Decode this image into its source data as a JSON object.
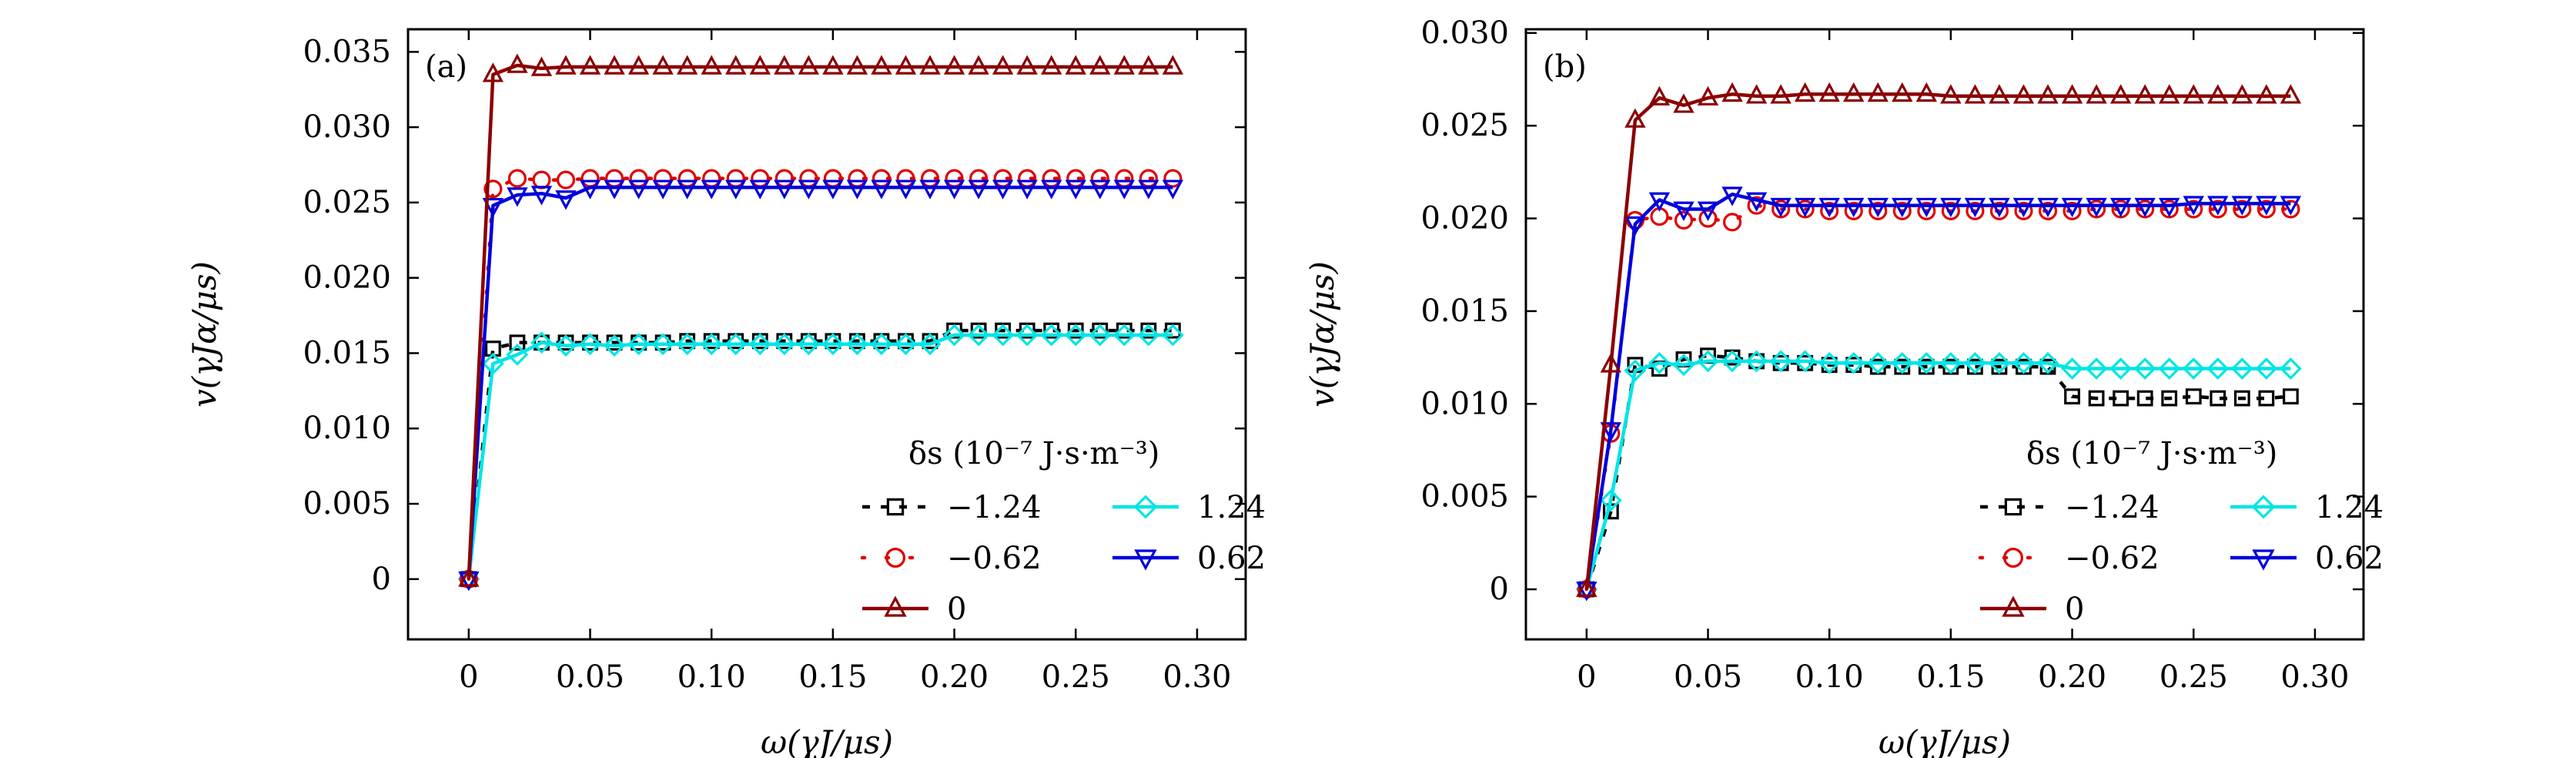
{
  "chart_data": [
    {
      "type": "line",
      "panel_label": "(a)",
      "xlabel": "ω(γJ/μs)",
      "ylabel": "v(γJα/μs)",
      "xlim": [
        -0.025,
        0.32
      ],
      "ylim": [
        -0.004,
        0.0365
      ],
      "xticks": [
        0,
        0.05,
        0.1,
        0.15,
        0.2,
        0.25,
        0.3
      ],
      "xtick_labels": [
        "0",
        "0.05",
        "0.10",
        "0.15",
        "0.20",
        "0.25",
        "0.30"
      ],
      "yticks": [
        0,
        0.005,
        0.01,
        0.015,
        0.02,
        0.025,
        0.03,
        0.035
      ],
      "ytick_labels": [
        "0",
        "0.005",
        "0.010",
        "0.015",
        "0.020",
        "0.025",
        "0.030",
        "0.035"
      ],
      "legend_title": "δs (10⁻⁷ J·s·m⁻³)",
      "legend_position": "lower-right",
      "x": [
        0,
        0.01,
        0.02,
        0.03,
        0.04,
        0.05,
        0.06,
        0.07,
        0.08,
        0.09,
        0.1,
        0.11,
        0.12,
        0.13,
        0.14,
        0.15,
        0.16,
        0.17,
        0.18,
        0.19,
        0.2,
        0.21,
        0.22,
        0.23,
        0.24,
        0.25,
        0.26,
        0.27,
        0.28,
        0.29
      ],
      "series": [
        {
          "name": "−1.24",
          "color": "#000000",
          "marker": "square",
          "line": "dashed",
          "values": [
            0,
            0.0153,
            0.0157,
            0.0157,
            0.0157,
            0.0157,
            0.0157,
            0.0157,
            0.0157,
            0.0158,
            0.0158,
            0.0158,
            0.0158,
            0.0158,
            0.0158,
            0.0158,
            0.0158,
            0.0158,
            0.0158,
            0.0158,
            0.0165,
            0.0165,
            0.0165,
            0.0165,
            0.0165,
            0.0165,
            0.0165,
            0.0165,
            0.0165,
            0.0165
          ]
        },
        {
          "name": "1.24",
          "color": "#00e5e5",
          "marker": "diamond",
          "line": "solid",
          "values": [
            0,
            0.0143,
            0.0149,
            0.0157,
            0.0155,
            0.0156,
            0.0155,
            0.0156,
            0.0156,
            0.0156,
            0.0156,
            0.0156,
            0.0156,
            0.0156,
            0.0156,
            0.0156,
            0.0156,
            0.0156,
            0.0156,
            0.0156,
            0.0162,
            0.0162,
            0.0162,
            0.0162,
            0.0162,
            0.0162,
            0.0162,
            0.0162,
            0.0162,
            0.0162
          ]
        },
        {
          "name": "−0.62",
          "color": "#e00000",
          "marker": "circle",
          "line": "dotted",
          "values": [
            0,
            0.0259,
            0.0266,
            0.0265,
            0.0265,
            0.0266,
            0.0266,
            0.0266,
            0.0266,
            0.0266,
            0.0266,
            0.0266,
            0.0266,
            0.0266,
            0.0266,
            0.0266,
            0.0266,
            0.0266,
            0.0266,
            0.0266,
            0.0266,
            0.0266,
            0.0266,
            0.0266,
            0.0266,
            0.0266,
            0.0266,
            0.0266,
            0.0266,
            0.0266
          ]
        },
        {
          "name": "0.62",
          "color": "#0000dd",
          "marker": "triangle-down",
          "line": "solid",
          "values": [
            0,
            0.0248,
            0.0255,
            0.0256,
            0.0253,
            0.026,
            0.026,
            0.026,
            0.026,
            0.026,
            0.026,
            0.026,
            0.026,
            0.026,
            0.026,
            0.026,
            0.026,
            0.026,
            0.026,
            0.026,
            0.026,
            0.026,
            0.026,
            0.026,
            0.026,
            0.026,
            0.026,
            0.026,
            0.026,
            0.026
          ]
        },
        {
          "name": "0",
          "color": "#8b0000",
          "marker": "triangle-up",
          "line": "solid",
          "values": [
            0,
            0.0335,
            0.0341,
            0.0339,
            0.034,
            0.034,
            0.034,
            0.034,
            0.034,
            0.034,
            0.034,
            0.034,
            0.034,
            0.034,
            0.034,
            0.034,
            0.034,
            0.034,
            0.034,
            0.034,
            0.034,
            0.034,
            0.034,
            0.034,
            0.034,
            0.034,
            0.034,
            0.034,
            0.034,
            0.034
          ]
        }
      ]
    },
    {
      "type": "line",
      "panel_label": "(b)",
      "xlabel": "ω(γJ/μs)",
      "ylabel": "v(γJα/μs)",
      "xlim": [
        -0.025,
        0.32
      ],
      "ylim": [
        -0.0027,
        0.0302
      ],
      "xticks": [
        0,
        0.05,
        0.1,
        0.15,
        0.2,
        0.25,
        0.3
      ],
      "xtick_labels": [
        "0",
        "0.05",
        "0.10",
        "0.15",
        "0.20",
        "0.25",
        "0.30"
      ],
      "yticks": [
        0,
        0.005,
        0.01,
        0.015,
        0.02,
        0.025,
        0.03
      ],
      "ytick_labels": [
        "0",
        "0.005",
        "0.010",
        "0.015",
        "0.020",
        "0.025",
        "0.030"
      ],
      "legend_title": "δs (10⁻⁷ J·s·m⁻³)",
      "legend_position": "lower-right",
      "x": [
        0,
        0.01,
        0.02,
        0.03,
        0.04,
        0.05,
        0.06,
        0.07,
        0.08,
        0.09,
        0.1,
        0.11,
        0.12,
        0.13,
        0.14,
        0.15,
        0.16,
        0.17,
        0.18,
        0.19,
        0.2,
        0.21,
        0.22,
        0.23,
        0.24,
        0.25,
        0.26,
        0.27,
        0.28,
        0.29
      ],
      "series": [
        {
          "name": "−1.24",
          "color": "#000000",
          "marker": "square",
          "line": "dashed",
          "values": [
            0,
            0.0042,
            0.0121,
            0.0119,
            0.0124,
            0.0126,
            0.0125,
            0.0123,
            0.0122,
            0.0122,
            0.0121,
            0.0121,
            0.012,
            0.012,
            0.012,
            0.012,
            0.012,
            0.012,
            0.012,
            0.012,
            0.0104,
            0.0103,
            0.0103,
            0.0103,
            0.0103,
            0.0104,
            0.0103,
            0.0103,
            0.0103,
            0.0104
          ]
        },
        {
          "name": "1.24",
          "color": "#00e5e5",
          "marker": "diamond",
          "line": "solid",
          "values": [
            0,
            0.0048,
            0.0118,
            0.0122,
            0.0121,
            0.0123,
            0.0123,
            0.0123,
            0.0123,
            0.0123,
            0.0122,
            0.0122,
            0.0122,
            0.0122,
            0.0122,
            0.0122,
            0.0122,
            0.0122,
            0.0122,
            0.0122,
            0.0119,
            0.0119,
            0.0119,
            0.0119,
            0.0119,
            0.0119,
            0.0119,
            0.0119,
            0.0119,
            0.0119
          ]
        },
        {
          "name": "−0.62",
          "color": "#e00000",
          "marker": "circle",
          "line": "dotted",
          "values": [
            0,
            0.0084,
            0.0199,
            0.0201,
            0.0199,
            0.02,
            0.0198,
            0.0207,
            0.0205,
            0.0205,
            0.0204,
            0.0204,
            0.0204,
            0.0204,
            0.0204,
            0.0204,
            0.0204,
            0.0204,
            0.0204,
            0.0204,
            0.0204,
            0.0205,
            0.0205,
            0.0205,
            0.0205,
            0.0205,
            0.0205,
            0.0205,
            0.0205,
            0.0205
          ]
        },
        {
          "name": "0.62",
          "color": "#0000dd",
          "marker": "triangle-down",
          "line": "solid",
          "values": [
            0,
            0.0086,
            0.0197,
            0.021,
            0.0205,
            0.0205,
            0.0213,
            0.021,
            0.0207,
            0.0207,
            0.0207,
            0.0207,
            0.0207,
            0.0207,
            0.0207,
            0.0207,
            0.0207,
            0.0207,
            0.0207,
            0.0207,
            0.0207,
            0.0207,
            0.0207,
            0.0207,
            0.0207,
            0.0208,
            0.0208,
            0.0208,
            0.0208,
            0.0208
          ]
        },
        {
          "name": "0",
          "color": "#8b0000",
          "marker": "triangle-up",
          "line": "solid",
          "values": [
            0,
            0.0121,
            0.0253,
            0.0265,
            0.0261,
            0.0265,
            0.0267,
            0.0266,
            0.0266,
            0.0267,
            0.0267,
            0.0267,
            0.0267,
            0.0267,
            0.0267,
            0.0266,
            0.0266,
            0.0266,
            0.0266,
            0.0266,
            0.0266,
            0.0266,
            0.0266,
            0.0266,
            0.0266,
            0.0266,
            0.0266,
            0.0266,
            0.0266,
            0.0266
          ]
        }
      ]
    }
  ]
}
